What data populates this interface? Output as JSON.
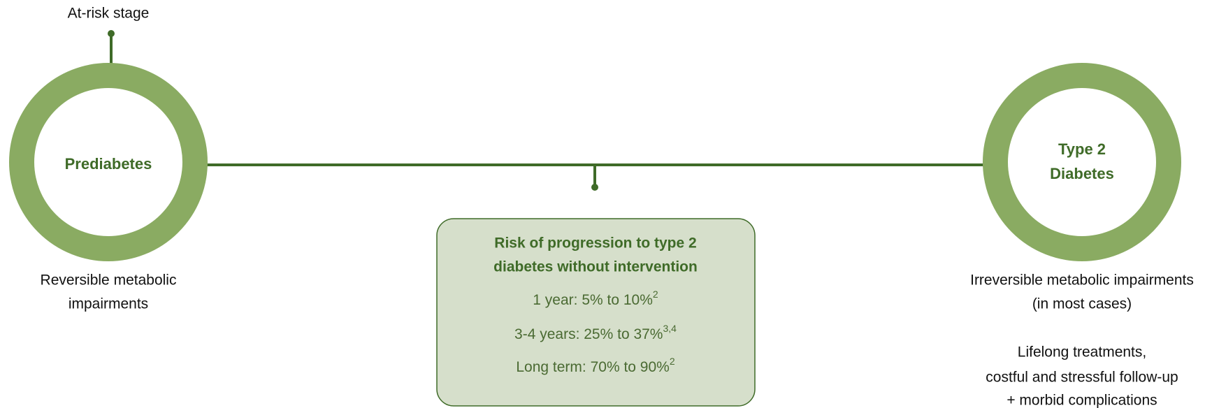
{
  "stage_label": "At-risk stage",
  "left_node": {
    "label": "Prediabetes",
    "description": [
      "Reversible metabolic",
      "impairments"
    ]
  },
  "right_node": {
    "label": [
      "Type 2",
      "Diabetes"
    ],
    "description": [
      "Irreversible metabolic impairments",
      "(in most cases)"
    ],
    "notes": [
      "Lifelong treatments,",
      "costful and stressful follow-up",
      "+ morbid complications"
    ]
  },
  "risk_box": {
    "title": [
      "Risk of progression to type 2",
      "diabetes without intervention"
    ],
    "items": [
      {
        "text": "1 year: 5% to 10%",
        "ref": "2"
      },
      {
        "text": "3-4 years: 25% to 37%",
        "ref": "3,4"
      },
      {
        "text": "Long term: 70% to 90%",
        "ref": "2"
      }
    ]
  }
}
